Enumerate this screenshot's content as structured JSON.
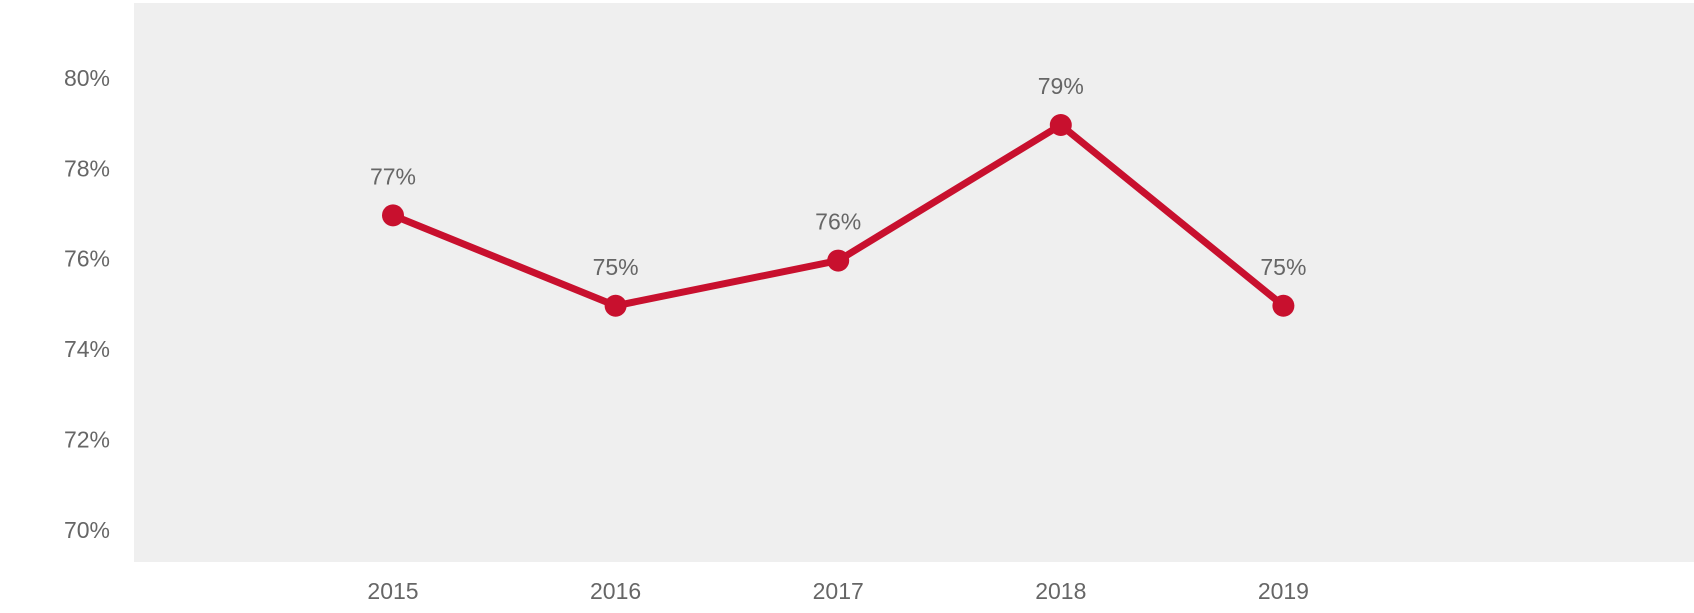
{
  "chart_data": {
    "type": "line",
    "categories": [
      "2015",
      "2016",
      "2017",
      "2018",
      "2019"
    ],
    "values": [
      77,
      75,
      76,
      79,
      75
    ],
    "value_labels": [
      "77%",
      "75%",
      "76%",
      "79%",
      "75%"
    ],
    "color": "#c8102e",
    "ylim": [
      69.33,
      81.7
    ],
    "yticks": [
      {
        "value": 70,
        "label": "70%"
      },
      {
        "value": 72,
        "label": "72%"
      },
      {
        "value": 74,
        "label": "74%"
      },
      {
        "value": 76,
        "label": "76%"
      },
      {
        "value": 78,
        "label": "78%"
      },
      {
        "value": 80,
        "label": "80%"
      }
    ],
    "grid": false
  }
}
